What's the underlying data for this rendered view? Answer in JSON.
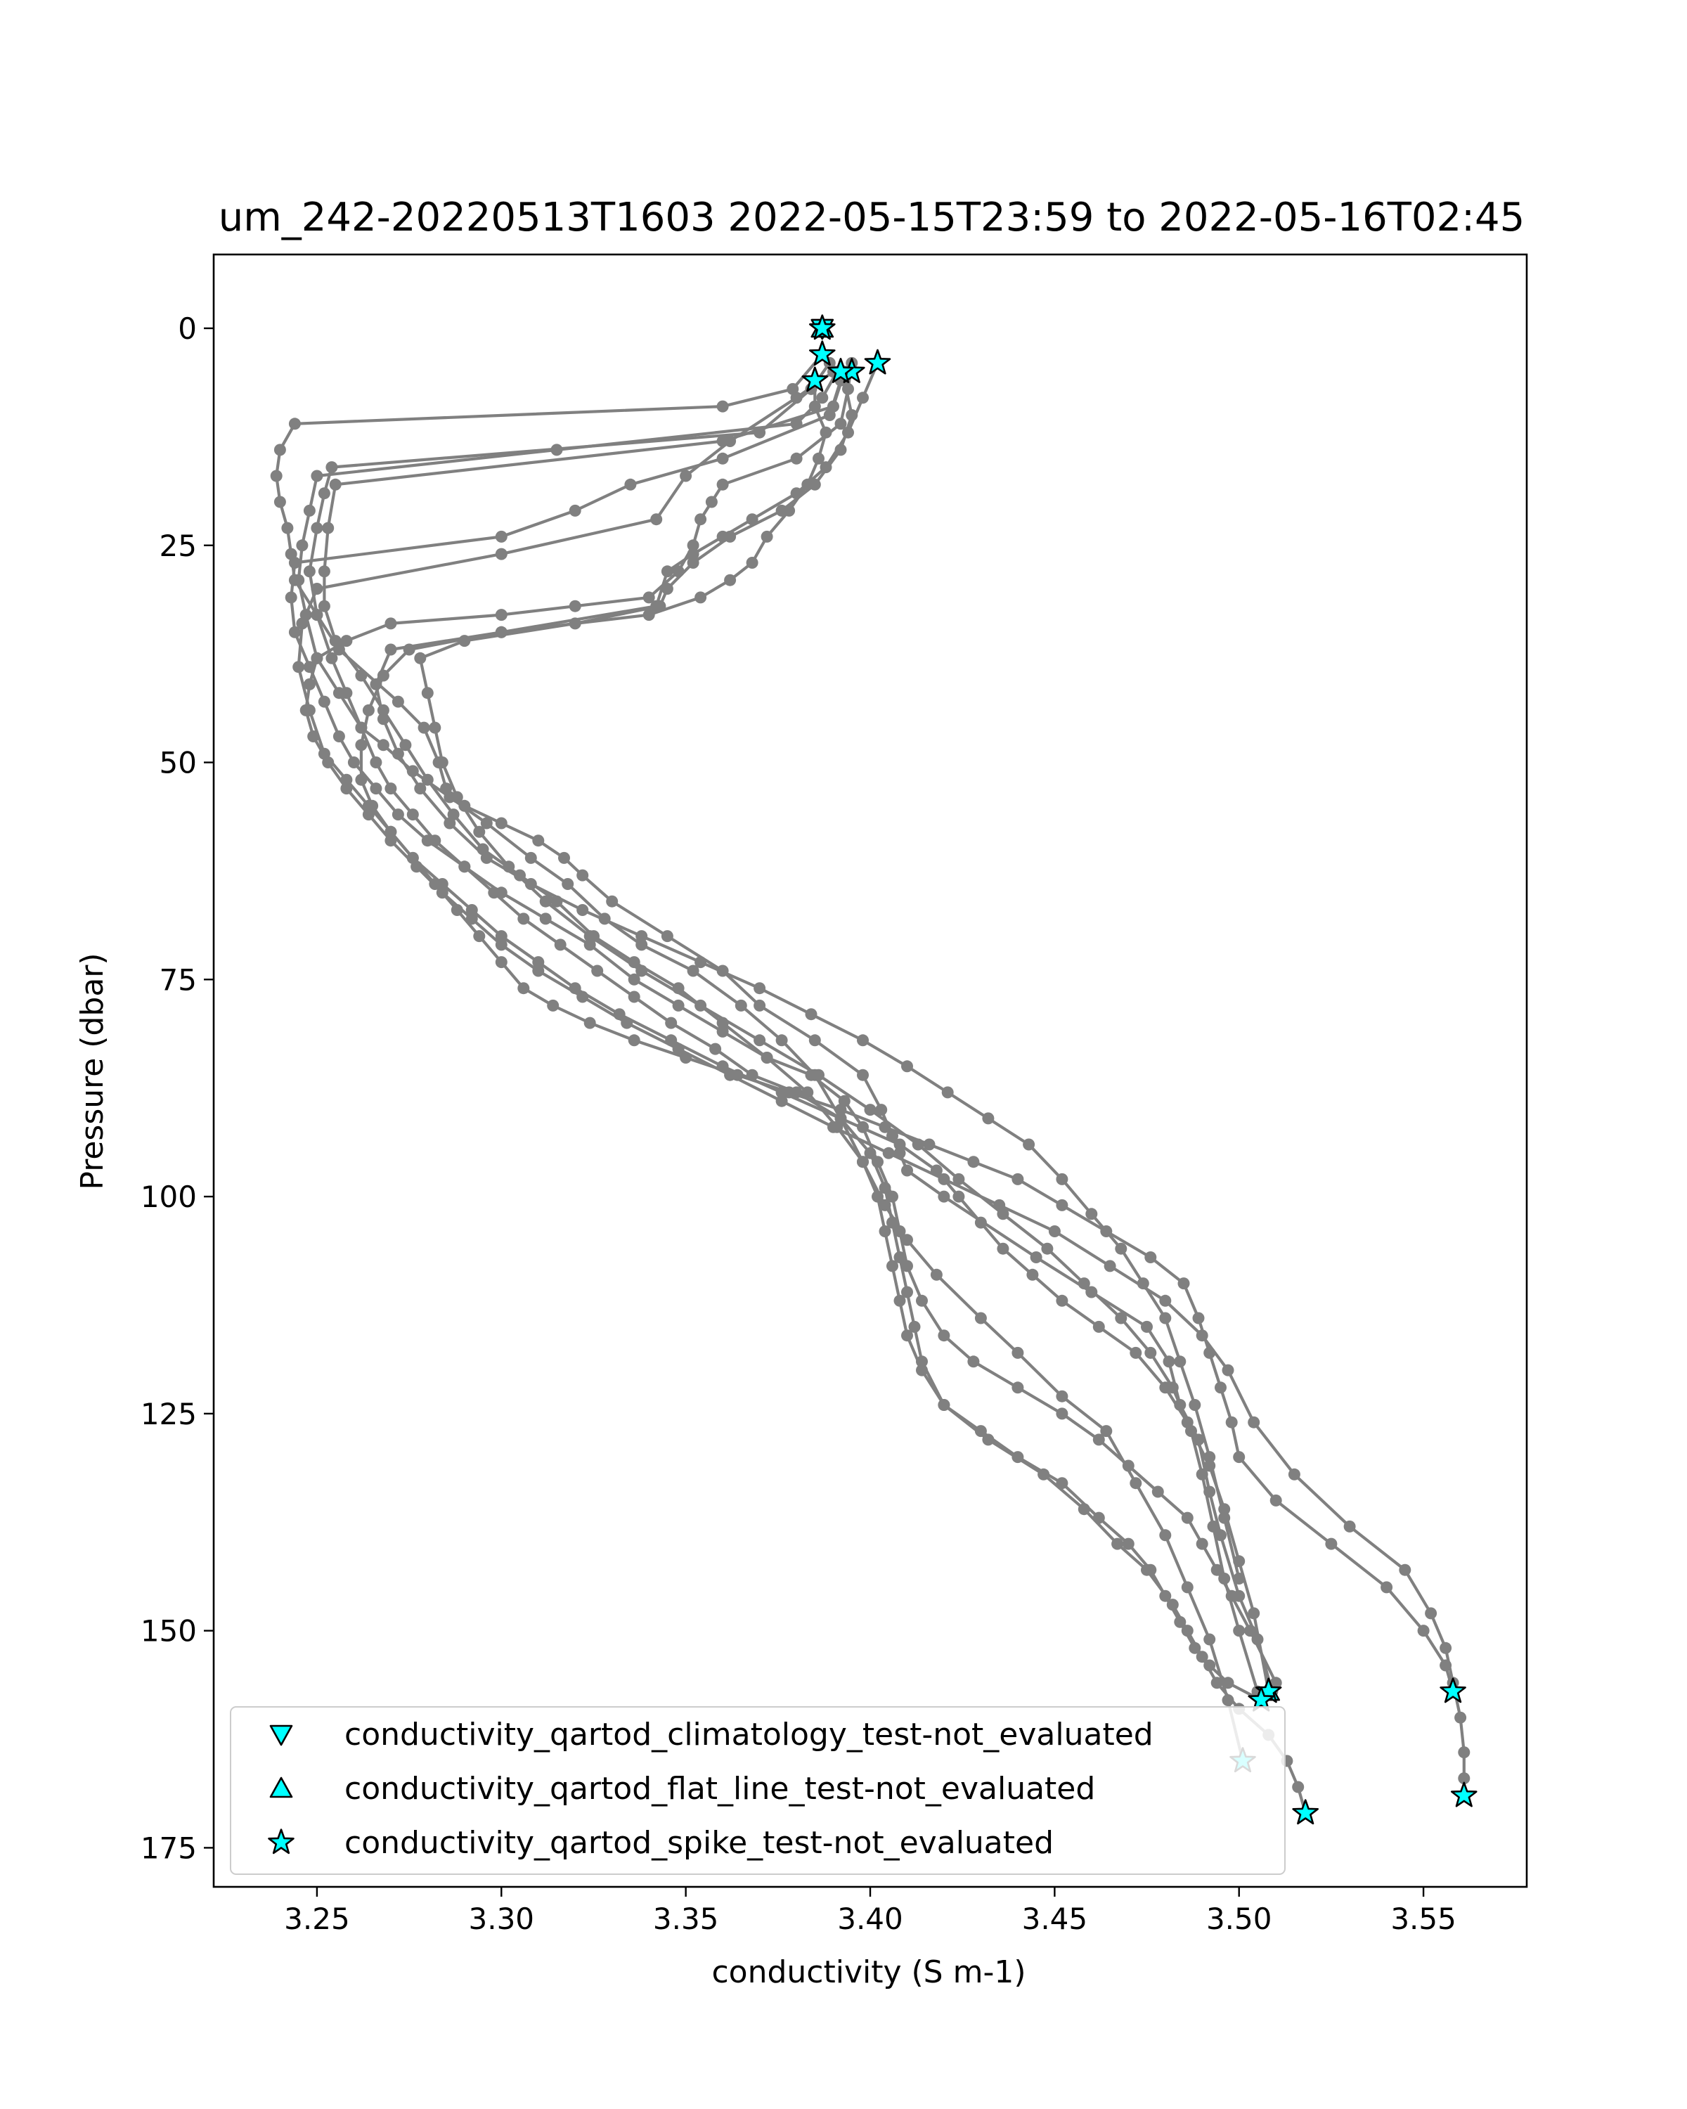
{
  "chart_data": {
    "type": "scatter",
    "title": "um_242-20220513T1603 2022-05-15T23:59 to 2022-05-16T02:45",
    "xlabel": "conductivity (S m-1)",
    "ylabel": "Pressure (dbar)",
    "xlim": [
      3.222,
      3.578
    ],
    "ylim": [
      179.5,
      -8.5
    ],
    "y_inverted": true,
    "xticks": [
      3.25,
      3.3,
      3.35,
      3.4,
      3.45,
      3.5,
      3.55
    ],
    "xtick_labels": [
      "3.25",
      "3.30",
      "3.35",
      "3.40",
      "3.45",
      "3.50",
      "3.55"
    ],
    "yticks": [
      0,
      25,
      50,
      75,
      100,
      125,
      150,
      175
    ],
    "ytick_labels": [
      "0",
      "25",
      "50",
      "75",
      "100",
      "125",
      "150",
      "175"
    ],
    "grid": false,
    "legend_position": "lower-left",
    "colors": {
      "profile": "#808080",
      "flag_fill": "#00ffff",
      "flag_edge": "#000000"
    },
    "profiles": [
      {
        "x": [
          3.387,
          3.379,
          3.36,
          3.244,
          3.24,
          3.239,
          3.24,
          3.242,
          3.243,
          3.244,
          3.25,
          3.256,
          3.272,
          3.279,
          3.283,
          3.285,
          3.29,
          3.3,
          3.31,
          3.317,
          3.322,
          3.33,
          3.345,
          3.36,
          3.37,
          3.385,
          3.398,
          3.403,
          3.406,
          3.408,
          3.41,
          3.42,
          3.445,
          3.46,
          3.475,
          3.481,
          3.484,
          3.489,
          3.492,
          3.495,
          3.5,
          3.505,
          3.509
        ],
        "y": [
          3,
          7,
          9,
          11,
          14,
          17,
          20,
          23,
          26,
          29,
          33,
          37,
          43,
          46,
          50,
          53,
          55,
          57,
          59,
          61,
          63,
          66,
          70,
          74,
          78,
          82,
          86,
          90,
          93,
          95,
          97,
          100,
          107,
          111,
          115,
          119,
          124,
          128,
          134,
          139,
          146,
          151,
          157
        ]
      },
      {
        "x": [
          3.391,
          3.387,
          3.38,
          3.315,
          3.25,
          3.248,
          3.246,
          3.245,
          3.247,
          3.25,
          3.256,
          3.262,
          3.268,
          3.276,
          3.286,
          3.296,
          3.308,
          3.318,
          3.328,
          3.338,
          3.352,
          3.365,
          3.376,
          3.385,
          3.392,
          3.398,
          3.404,
          3.41,
          3.418,
          3.43,
          3.44,
          3.452,
          3.464,
          3.472,
          3.48,
          3.486,
          3.492,
          3.497,
          3.501
        ],
        "y": [
          5,
          8,
          11,
          14,
          17,
          21,
          25,
          29,
          33,
          38,
          42,
          46,
          48,
          51,
          54,
          57,
          61,
          64,
          68,
          71,
          74,
          78,
          82,
          86,
          91,
          96,
          101,
          105,
          109,
          114,
          118,
          123,
          127,
          133,
          139,
          145,
          151,
          158,
          165
        ]
      },
      {
        "x": [
          3.389,
          3.384,
          3.37,
          3.254,
          3.252,
          3.25,
          3.248,
          3.25,
          3.254,
          3.258,
          3.262,
          3.266,
          3.27,
          3.276,
          3.282,
          3.29,
          3.298,
          3.306,
          3.316,
          3.326,
          3.336,
          3.346,
          3.358,
          3.368,
          3.38,
          3.392,
          3.4,
          3.404,
          3.406,
          3.408,
          3.41,
          3.412,
          3.414,
          3.42,
          3.432,
          3.447,
          3.458,
          3.467,
          3.475,
          3.482,
          3.486,
          3.49,
          3.494,
          3.5,
          3.508,
          3.513,
          3.516,
          3.518
        ],
        "y": [
          4,
          7,
          12,
          16,
          19,
          23,
          28,
          33,
          38,
          42,
          46,
          50,
          53,
          56,
          59,
          62,
          65,
          68,
          71,
          74,
          77,
          80,
          83,
          86,
          88,
          91,
          95,
          99,
          103,
          107,
          111,
          115,
          119,
          124,
          128,
          132,
          136,
          140,
          143,
          147,
          150,
          153,
          156,
          159,
          162,
          165,
          168,
          171
        ]
      },
      {
        "x": [
          3.393,
          3.39,
          3.36,
          3.255,
          3.253,
          3.252,
          3.252,
          3.255,
          3.262,
          3.268,
          3.274,
          3.28,
          3.287,
          3.295,
          3.305,
          3.315,
          3.325,
          3.336,
          3.348,
          3.36,
          3.372,
          3.383,
          3.391,
          3.398,
          3.402,
          3.404,
          3.406,
          3.408,
          3.41,
          3.414,
          3.42,
          3.43,
          3.44,
          3.452,
          3.462,
          3.47,
          3.476,
          3.48,
          3.484,
          3.488,
          3.492,
          3.497,
          3.506
        ],
        "y": [
          5,
          9,
          13,
          18,
          23,
          28,
          32,
          36,
          40,
          44,
          48,
          52,
          56,
          60,
          63,
          66,
          70,
          73,
          76,
          80,
          84,
          88,
          92,
          96,
          100,
          104,
          108,
          112,
          116,
          120,
          124,
          127,
          130,
          133,
          137,
          140,
          143,
          146,
          149,
          152,
          154,
          156,
          158
        ]
      },
      {
        "x": [
          3.392,
          3.389,
          3.36,
          3.335,
          3.32,
          3.3,
          3.244,
          3.243,
          3.244,
          3.248,
          3.252,
          3.256,
          3.26,
          3.266,
          3.272,
          3.28,
          3.29,
          3.3,
          3.312,
          3.324,
          3.336,
          3.348,
          3.36,
          3.372,
          3.384,
          3.393,
          3.398,
          3.402,
          3.406,
          3.408,
          3.41,
          3.414,
          3.42,
          3.428,
          3.44,
          3.452,
          3.462,
          3.47,
          3.478,
          3.486,
          3.49,
          3.494,
          3.498,
          3.503,
          3.51
        ],
        "y": [
          6,
          10,
          15,
          18,
          21,
          24,
          27,
          31,
          35,
          39,
          43,
          47,
          50,
          53,
          56,
          59,
          62,
          65,
          68,
          71,
          75,
          78,
          81,
          84,
          86,
          89,
          92,
          96,
          100,
          104,
          108,
          112,
          116,
          119,
          122,
          125,
          128,
          131,
          134,
          137,
          140,
          143,
          146,
          150,
          156
        ]
      },
      {
        "x": [
          3.39,
          3.38,
          3.362,
          3.35,
          3.342,
          3.3,
          3.25,
          3.246,
          3.245,
          3.248,
          3.252,
          3.258,
          3.264,
          3.27,
          3.276,
          3.282,
          3.288,
          3.294,
          3.3,
          3.306,
          3.314,
          3.324,
          3.336,
          3.35,
          3.364,
          3.378,
          3.392,
          3.404,
          3.416,
          3.428,
          3.44,
          3.452,
          3.464,
          3.476,
          3.485,
          3.489,
          3.492,
          3.495,
          3.498,
          3.5,
          3.51,
          3.525,
          3.54,
          3.55,
          3.556,
          3.558
        ],
        "y": [
          5,
          8,
          13,
          17,
          22,
          26,
          30,
          34,
          39,
          44,
          49,
          52,
          55,
          58,
          61,
          64,
          67,
          70,
          73,
          76,
          78,
          80,
          82,
          84,
          86,
          88,
          90,
          92,
          94,
          96,
          98,
          101,
          104,
          107,
          110,
          114,
          118,
          122,
          126,
          130,
          135,
          140,
          145,
          150,
          154,
          157
        ]
      },
      {
        "x": [
          3.395,
          3.394,
          3.392,
          3.38,
          3.36,
          3.357,
          3.354,
          3.352,
          3.348,
          3.34,
          3.32,
          3.3,
          3.27,
          3.258,
          3.25,
          3.248,
          3.247,
          3.249,
          3.253,
          3.258,
          3.264,
          3.27,
          3.277,
          3.284,
          3.292,
          3.3,
          3.31,
          3.322,
          3.334,
          3.348,
          3.362,
          3.376,
          3.39,
          3.405,
          3.42,
          3.435,
          3.45,
          3.465,
          3.48,
          3.49,
          3.497,
          3.504,
          3.515,
          3.53,
          3.545,
          3.552,
          3.556,
          3.558,
          3.56,
          3.561,
          3.561,
          3.561
        ],
        "y": [
          4,
          7,
          11,
          15,
          18,
          20,
          22,
          25,
          28,
          31,
          32,
          33,
          34,
          36,
          38,
          41,
          44,
          47,
          50,
          53,
          56,
          59,
          62,
          65,
          68,
          71,
          74,
          77,
          80,
          83,
          86,
          89,
          92,
          95,
          98,
          101,
          104,
          108,
          112,
          116,
          120,
          126,
          132,
          138,
          143,
          148,
          152,
          156,
          160,
          164,
          167,
          169
        ]
      },
      {
        "x": [
          3.402,
          3.398,
          3.394,
          3.388,
          3.38,
          3.368,
          3.36,
          3.352,
          3.345,
          3.342,
          3.3,
          3.275,
          3.268,
          3.264,
          3.262,
          3.262,
          3.265,
          3.27,
          3.276,
          3.284,
          3.292,
          3.3,
          3.31,
          3.32,
          3.332,
          3.346,
          3.36,
          3.376,
          3.392,
          3.408,
          3.418,
          3.424,
          3.43,
          3.436,
          3.444,
          3.452,
          3.462,
          3.472,
          3.48,
          3.486,
          3.492,
          3.496,
          3.5,
          3.504,
          3.508
        ],
        "y": [
          4,
          8,
          12,
          16,
          19,
          22,
          24,
          26,
          28,
          32,
          35,
          37,
          40,
          44,
          48,
          52,
          55,
          58,
          61,
          64,
          67,
          70,
          73,
          76,
          79,
          82,
          85,
          88,
          91,
          94,
          97,
          100,
          103,
          106,
          109,
          112,
          115,
          118,
          122,
          126,
          131,
          136,
          142,
          148,
          157
        ]
      },
      {
        "x": [
          3.393,
          3.395,
          3.392,
          3.385,
          3.376,
          3.362,
          3.352,
          3.345,
          3.343,
          3.32,
          3.29,
          3.278,
          3.28,
          3.282,
          3.284,
          3.288,
          3.294,
          3.302,
          3.312,
          3.324,
          3.338,
          3.354,
          3.37,
          3.386,
          3.4,
          3.413,
          3.424,
          3.436,
          3.448,
          3.458,
          3.468,
          3.476,
          3.482,
          3.487,
          3.49,
          3.493,
          3.496,
          3.5,
          3.505
        ],
        "y": [
          6,
          10,
          14,
          18,
          21,
          24,
          27,
          30,
          32,
          34,
          36,
          38,
          42,
          46,
          50,
          54,
          58,
          62,
          66,
          70,
          74,
          78,
          82,
          86,
          90,
          94,
          98,
          102,
          106,
          110,
          114,
          118,
          122,
          127,
          132,
          138,
          144,
          150,
          157
        ]
      },
      {
        "x": [
          3.385,
          3.385,
          3.388,
          3.386,
          3.383,
          3.378,
          3.372,
          3.368,
          3.362,
          3.354,
          3.34,
          3.3,
          3.27,
          3.266,
          3.268,
          3.272,
          3.278,
          3.286,
          3.296,
          3.308,
          3.322,
          3.338,
          3.354,
          3.37,
          3.384,
          3.398,
          3.41,
          3.421,
          3.432,
          3.443,
          3.452,
          3.46,
          3.468,
          3.474,
          3.48,
          3.484,
          3.488,
          3.492,
          3.496,
          3.5
        ],
        "y": [
          6,
          9,
          12,
          15,
          18,
          21,
          24,
          27,
          29,
          31,
          33,
          35,
          37,
          41,
          45,
          49,
          53,
          57,
          61,
          64,
          67,
          70,
          73,
          76,
          79,
          82,
          85,
          88,
          91,
          94,
          98,
          102,
          106,
          110,
          114,
          119,
          124,
          130,
          137,
          144
        ]
      }
    ],
    "flags": [
      {
        "name": "conductivity_qartod_climatology_test-not_evaluated",
        "marker": "triangle-down",
        "x": [
          3.387
        ],
        "y": [
          0
        ]
      },
      {
        "name": "conductivity_qartod_flat_line_test-not_evaluated",
        "marker": "triangle-up",
        "x": [
          3.387,
          3.508
        ],
        "y": [
          0,
          157
        ]
      },
      {
        "name": "conductivity_qartod_spike_test-not_evaluated",
        "marker": "star",
        "x": [
          3.387,
          3.387,
          3.402,
          3.395,
          3.392,
          3.385,
          3.508,
          3.506,
          3.501,
          3.518,
          3.558,
          3.561
        ],
        "y": [
          0,
          3,
          4,
          5,
          5,
          6,
          157,
          158,
          165,
          171,
          157,
          169
        ]
      }
    ],
    "legend": [
      "conductivity_qartod_climatology_test-not_evaluated",
      "conductivity_qartod_flat_line_test-not_evaluated",
      "conductivity_qartod_spike_test-not_evaluated"
    ]
  }
}
